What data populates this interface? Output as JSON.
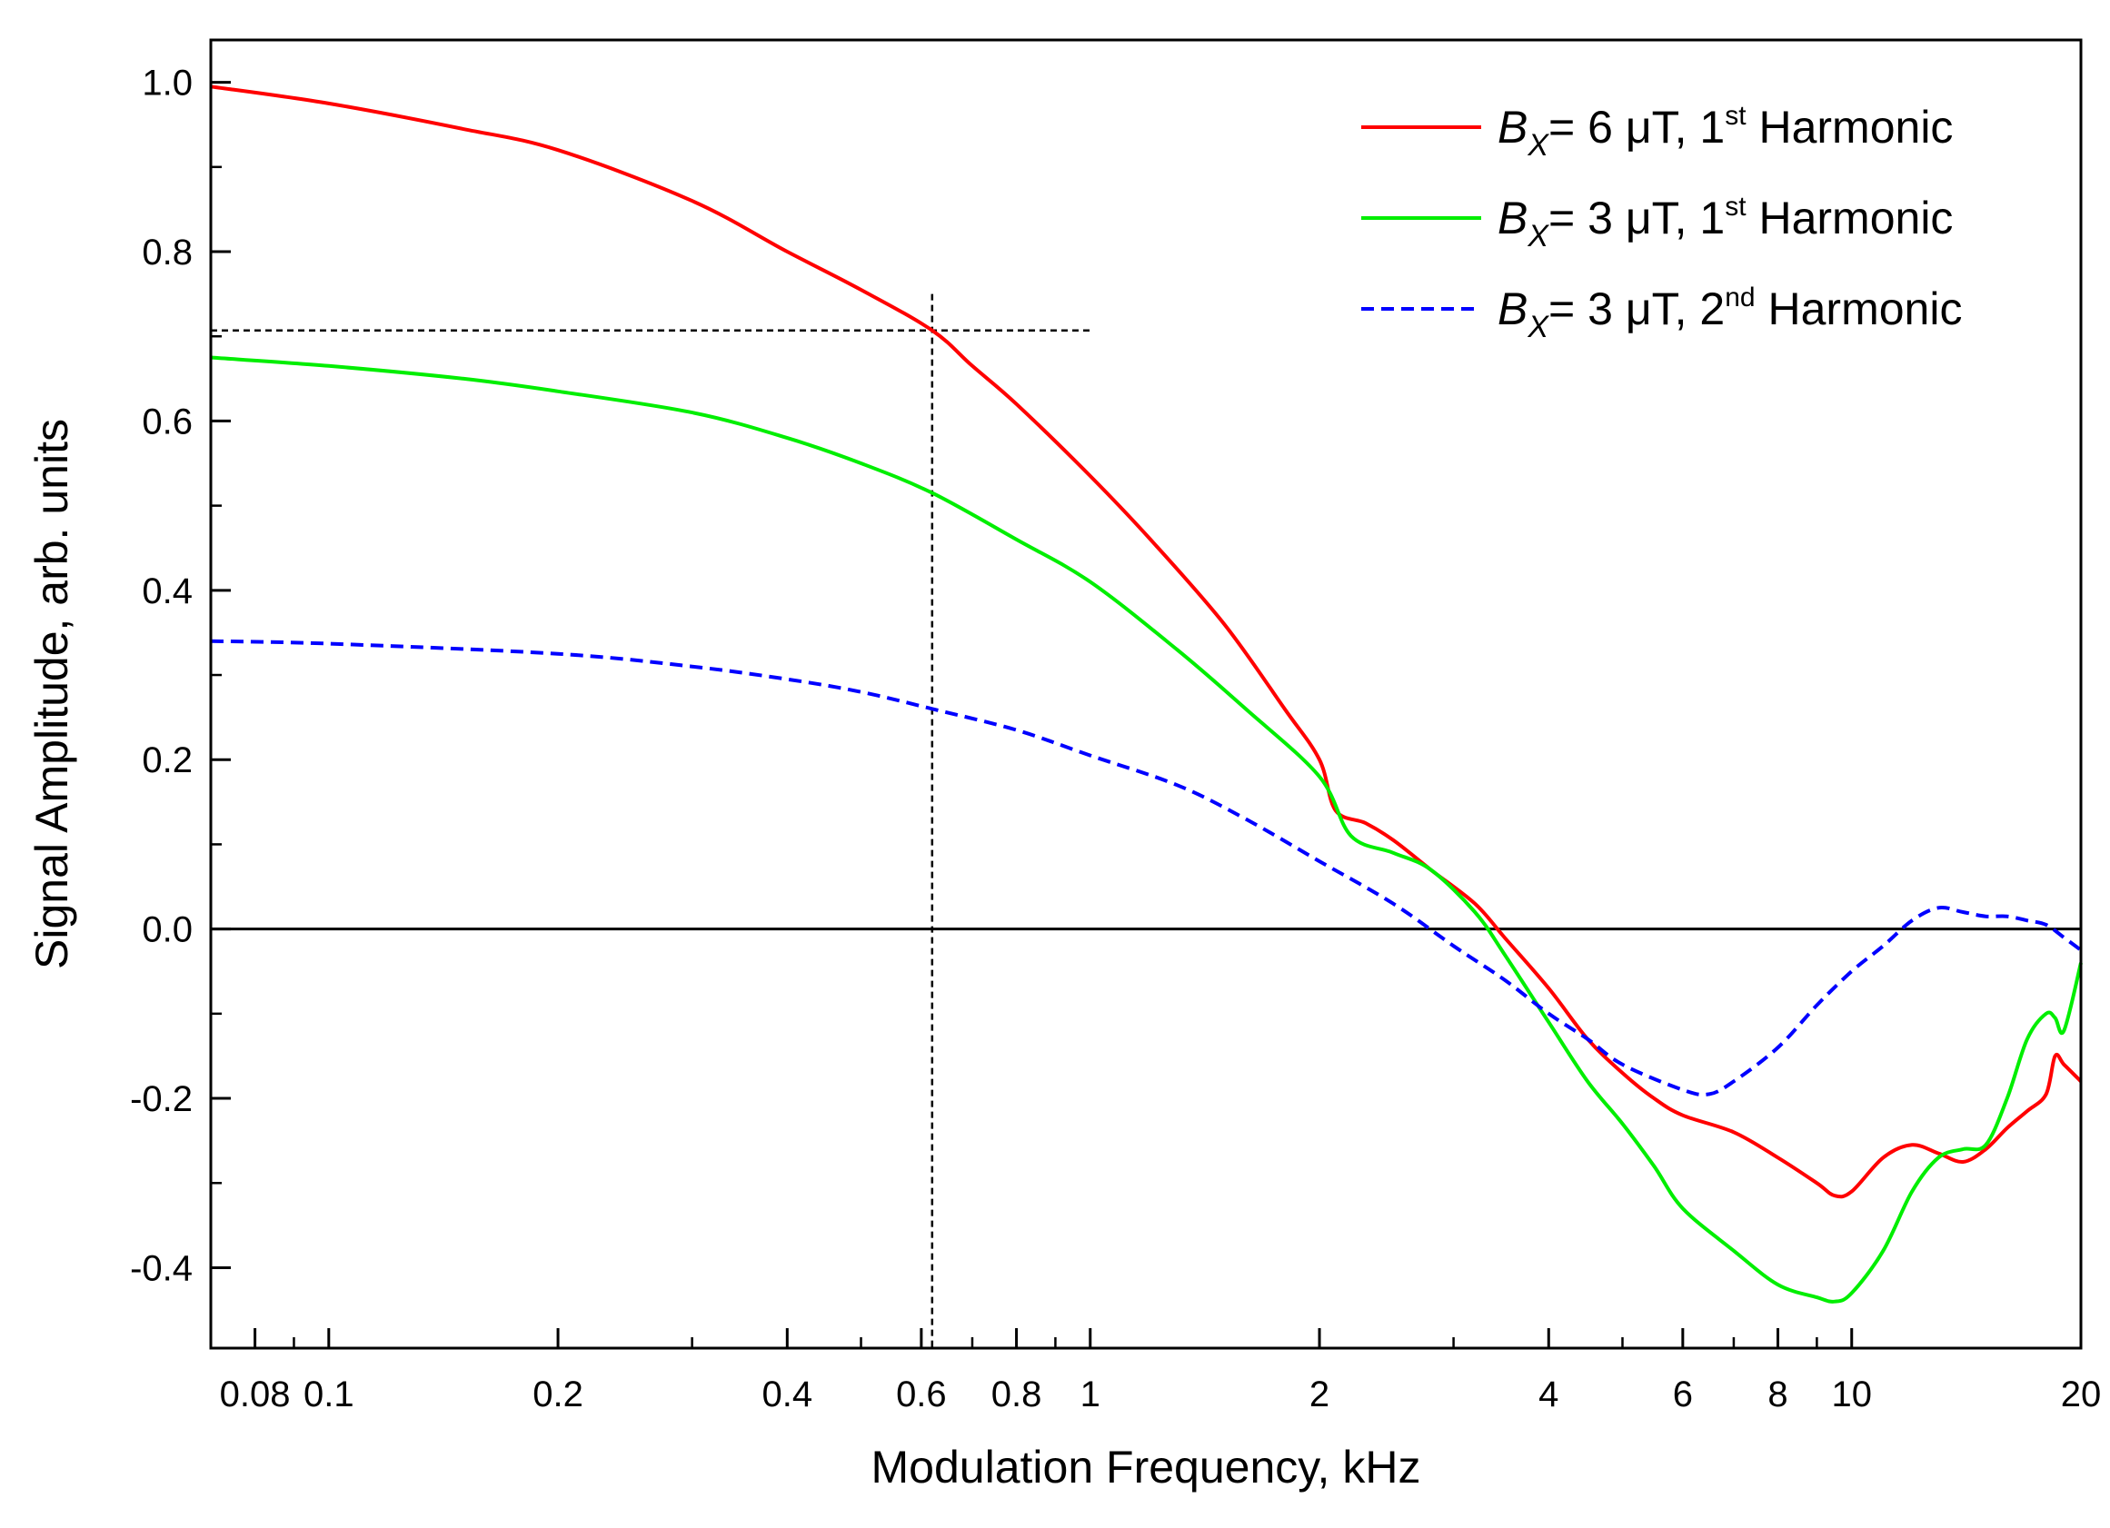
{
  "chart_data": {
    "type": "line",
    "xlabel": "Modulation Frequency, kHz",
    "ylabel": "Signal Amplitude, arb. units",
    "xscale": "log",
    "xlim": [
      0.07,
      20
    ],
    "ylim": [
      -0.495,
      1.05
    ],
    "grid": false,
    "legend_position": "top-right",
    "x_ticks": [
      {
        "value": 0.08,
        "label": "0.08"
      },
      {
        "value": 0.1,
        "label": "0.1"
      },
      {
        "value": 0.2,
        "label": "0.2"
      },
      {
        "value": 0.4,
        "label": "0.4"
      },
      {
        "value": 0.6,
        "label": "0.6"
      },
      {
        "value": 0.8,
        "label": "0.8"
      },
      {
        "value": 1,
        "label": "1"
      },
      {
        "value": 2,
        "label": "2"
      },
      {
        "value": 4,
        "label": "4"
      },
      {
        "value": 6,
        "label": "6"
      },
      {
        "value": 8,
        "label": "8"
      },
      {
        "value": 10,
        "label": "10"
      },
      {
        "value": 20,
        "label": "20"
      }
    ],
    "y_ticks": [
      {
        "value": 1.0,
        "label": "1.0"
      },
      {
        "value": 0.8,
        "label": "0.8"
      },
      {
        "value": 0.6,
        "label": "0.6"
      },
      {
        "value": 0.4,
        "label": "0.4"
      },
      {
        "value": 0.2,
        "label": "0.2"
      },
      {
        "value": 0.0,
        "label": "0.0"
      },
      {
        "value": -0.2,
        "label": "-0.2"
      },
      {
        "value": -0.4,
        "label": "-0.4"
      }
    ],
    "reference_lines": {
      "zero_line": 0.0,
      "horizontal": {
        "y": 0.707,
        "x_range": [
          0.07,
          1.0
        ]
      },
      "vertical": {
        "x": 0.62,
        "y_range": [
          -0.495,
          0.75
        ]
      }
    },
    "series": [
      {
        "name": "B_X = 6 μT, 1st Harmonic",
        "legend": {
          "var": "B",
          "sub": "X",
          "text": "= 6 μT, 1",
          "sup": "st",
          "suffix": " Harmonic"
        },
        "color": "#ff0000",
        "dash": "solid",
        "x": [
          0.07,
          0.1,
          0.15,
          0.2,
          0.3,
          0.4,
          0.5,
          0.62,
          0.7,
          0.8,
          1.0,
          1.2,
          1.5,
          1.8,
          2.0,
          2.1,
          2.3,
          2.5,
          2.8,
          3.2,
          3.5,
          4.0,
          4.5,
          5.0,
          5.5,
          6.0,
          7.0,
          8.0,
          9.0,
          9.5,
          10.0,
          11.0,
          12.0,
          13.0,
          14.0,
          15.0,
          16.0,
          17.0,
          18.0,
          18.5,
          19.0,
          20.0
        ],
        "y": [
          0.995,
          0.975,
          0.945,
          0.92,
          0.86,
          0.8,
          0.755,
          0.707,
          0.665,
          0.62,
          0.535,
          0.46,
          0.36,
          0.26,
          0.2,
          0.14,
          0.125,
          0.105,
          0.07,
          0.03,
          -0.01,
          -0.07,
          -0.13,
          -0.17,
          -0.2,
          -0.22,
          -0.24,
          -0.27,
          -0.3,
          -0.315,
          -0.31,
          -0.27,
          -0.255,
          -0.265,
          -0.275,
          -0.26,
          -0.235,
          -0.215,
          -0.195,
          -0.15,
          -0.16,
          -0.18
        ]
      },
      {
        "name": "B_X = 3 μT, 1st Harmonic",
        "legend": {
          "var": "B",
          "sub": "X",
          "text": "= 3 μT, 1",
          "sup": "st",
          "suffix": " Harmonic"
        },
        "color": "#00ee00",
        "dash": "solid",
        "x": [
          0.07,
          0.1,
          0.15,
          0.2,
          0.3,
          0.4,
          0.5,
          0.62,
          0.8,
          1.0,
          1.3,
          1.6,
          2.0,
          2.2,
          2.5,
          2.8,
          3.2,
          3.5,
          4.0,
          4.5,
          5.0,
          5.5,
          6.0,
          7.0,
          8.0,
          9.0,
          9.5,
          10.0,
          11.0,
          12.0,
          13.0,
          14.0,
          15.0,
          16.0,
          17.0,
          18.0,
          18.5,
          19.0,
          20.0
        ],
        "y": [
          0.675,
          0.665,
          0.65,
          0.635,
          0.61,
          0.58,
          0.55,
          0.515,
          0.46,
          0.41,
          0.33,
          0.26,
          0.18,
          0.11,
          0.09,
          0.07,
          0.02,
          -0.03,
          -0.11,
          -0.18,
          -0.23,
          -0.28,
          -0.33,
          -0.38,
          -0.42,
          -0.435,
          -0.44,
          -0.43,
          -0.38,
          -0.31,
          -0.27,
          -0.26,
          -0.255,
          -0.2,
          -0.13,
          -0.1,
          -0.105,
          -0.12,
          -0.04
        ]
      },
      {
        "name": "B_X = 3 μT, 2nd Harmonic",
        "legend": {
          "var": "B",
          "sub": "X",
          "text": "= 3 μT, 2",
          "sup": "nd",
          "suffix": " Harmonic"
        },
        "color": "#0000ff",
        "dash": "dashed",
        "x": [
          0.07,
          0.1,
          0.2,
          0.3,
          0.4,
          0.5,
          0.62,
          0.8,
          1.0,
          1.3,
          1.6,
          2.0,
          2.5,
          3.0,
          3.5,
          4.0,
          4.5,
          5.0,
          6.0,
          6.5,
          7.0,
          8.0,
          9.0,
          10.0,
          11.0,
          12.0,
          13.0,
          14.0,
          15.0,
          16.0,
          17.0,
          18.0,
          19.0,
          20.0
        ],
        "y": [
          0.34,
          0.337,
          0.325,
          0.31,
          0.295,
          0.28,
          0.26,
          0.235,
          0.205,
          0.17,
          0.13,
          0.08,
          0.03,
          -0.02,
          -0.06,
          -0.1,
          -0.13,
          -0.16,
          -0.19,
          -0.195,
          -0.18,
          -0.14,
          -0.09,
          -0.05,
          -0.02,
          0.01,
          0.025,
          0.02,
          0.015,
          0.015,
          0.01,
          0.005,
          -0.01,
          -0.025
        ]
      }
    ]
  }
}
